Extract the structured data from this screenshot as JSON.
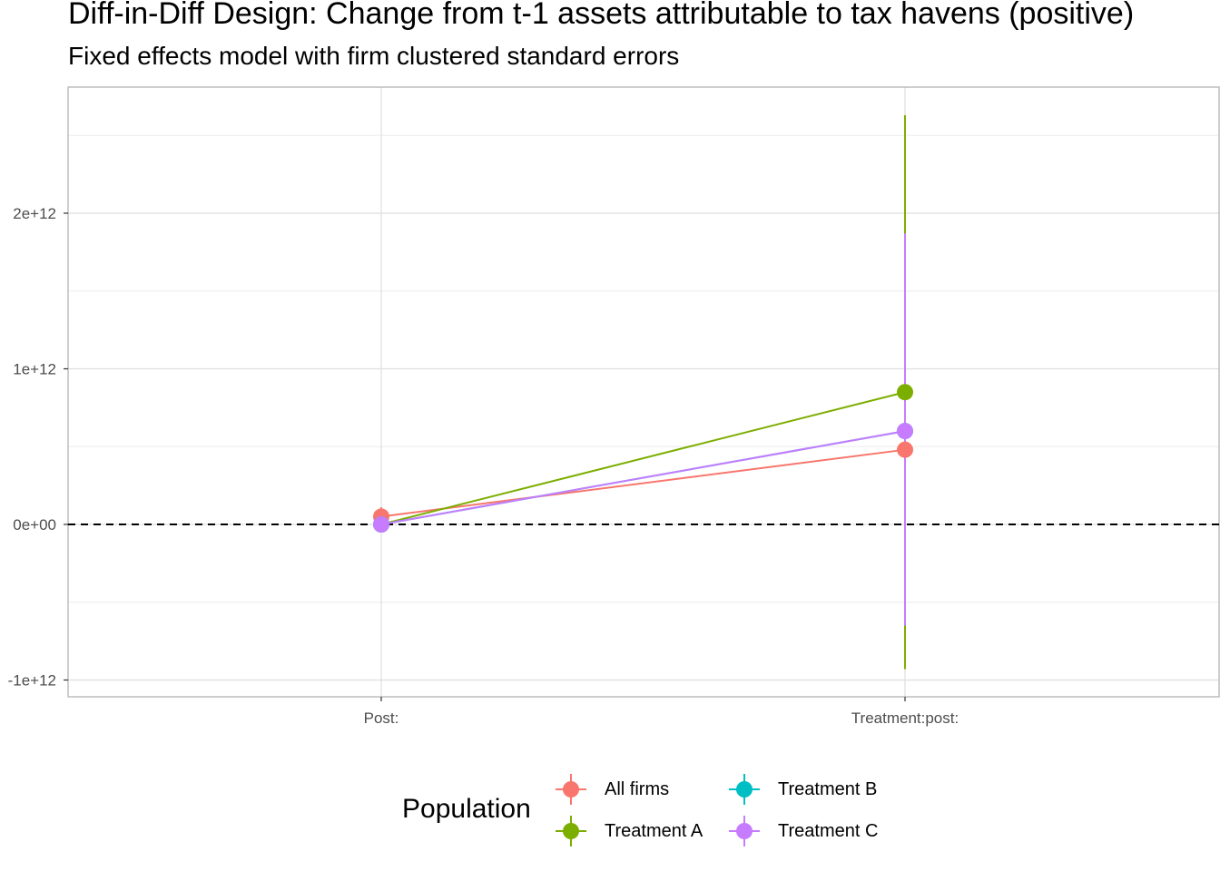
{
  "chart_data": {
    "type": "scatter",
    "title": "Diff-in-Diff Design: Change from t-1 assets attributable to tax havens (positive)",
    "subtitle": "Fixed effects model with firm clustered standard errors",
    "categories": [
      "Post:",
      "Treatment:post:"
    ],
    "y_ticks": [
      -1000000000000.0,
      0,
      1000000000000.0,
      2000000000000.0
    ],
    "y_tick_labels": [
      "-1e+12",
      "0e+00",
      "1e+12",
      "2e+12"
    ],
    "ylim": [
      -1100000000000.0,
      2800000000000.0
    ],
    "reference_line": 0,
    "grid": true,
    "legend_position": "bottom",
    "legend_title": "Population",
    "series": [
      {
        "name": "All firms",
        "color": "#F8766D",
        "values": [
          50000000000.0,
          480000000000.0
        ],
        "lower": [
          -10000000000.0,
          -200000000000.0
        ],
        "upper": [
          110000000000.0,
          1200000000000.0
        ]
      },
      {
        "name": "Treatment A",
        "color": "#7CAE00",
        "values": [
          0,
          850000000000.0
        ],
        "lower": [
          -10000000000.0,
          -930000000000.0
        ],
        "upper": [
          10000000000.0,
          2630000000000.0
        ]
      },
      {
        "name": "Treatment B",
        "color": "#00BFC4",
        "values": [
          0,
          600000000000.0
        ],
        "lower": [
          -10000000000.0,
          -650000000000.0
        ],
        "upper": [
          10000000000.0,
          1870000000000.0
        ]
      },
      {
        "name": "Treatment C",
        "color": "#C77CFF",
        "values": [
          0,
          600000000000.0
        ],
        "lower": [
          -10000000000.0,
          -650000000000.0
        ],
        "upper": [
          10000000000.0,
          1870000000000.0
        ]
      }
    ]
  }
}
